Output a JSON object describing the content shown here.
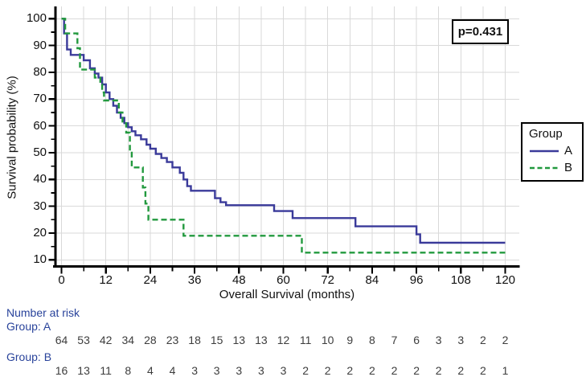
{
  "figure": {
    "p_value_label": "p=0.431",
    "legend": {
      "title": "Group",
      "items": [
        {
          "label": "A",
          "color": "#3a3a9a",
          "line_style": "solid"
        },
        {
          "label": "B",
          "color": "#22993e",
          "line_style": "dashed"
        }
      ]
    }
  },
  "chart_data": {
    "type": "line",
    "subtype": "kaplan_meier_step",
    "title": "",
    "xlabel": "Overall Survival (months)",
    "ylabel": "Survival probability (%)",
    "xlim": [
      0,
      120
    ],
    "ylim": [
      10,
      100
    ],
    "grid": true,
    "legend_position": "right-outside",
    "annotation": "p=0.431",
    "x_ticks_major": [
      0,
      12,
      24,
      36,
      48,
      60,
      72,
      84,
      96,
      108,
      120
    ],
    "x_ticks_minor": [
      6,
      18,
      30,
      42,
      54,
      66,
      78,
      90,
      102,
      114
    ],
    "y_ticks_major": [
      10,
      20,
      30,
      40,
      50,
      60,
      70,
      80,
      90,
      100
    ],
    "y_ticks_minor": [
      15,
      25,
      35,
      45,
      55,
      65,
      75,
      85,
      95
    ],
    "series": [
      {
        "name": "A",
        "color": "#3a3a9a",
        "style": "solid",
        "points": [
          [
            0,
            100
          ],
          [
            0.7,
            94.5
          ],
          [
            1.5,
            88.5
          ],
          [
            2.5,
            86.5
          ],
          [
            6,
            84.5
          ],
          [
            7.7,
            81.5
          ],
          [
            9,
            79.5
          ],
          [
            10,
            78
          ],
          [
            11,
            75.5
          ],
          [
            12,
            72.5
          ],
          [
            13,
            70
          ],
          [
            14,
            67.5
          ],
          [
            15,
            65
          ],
          [
            16,
            63
          ],
          [
            17,
            61
          ],
          [
            18,
            59.5
          ],
          [
            19,
            58
          ],
          [
            20,
            56.5
          ],
          [
            21.5,
            55
          ],
          [
            23,
            53
          ],
          [
            24,
            51.5
          ],
          [
            25.5,
            49.5
          ],
          [
            27,
            48
          ],
          [
            28.5,
            46.5
          ],
          [
            30,
            44.5
          ],
          [
            32,
            42.5
          ],
          [
            33,
            40
          ],
          [
            34,
            37.5
          ],
          [
            35,
            35.8
          ],
          [
            41.5,
            33
          ],
          [
            43,
            31.5
          ],
          [
            44.5,
            30.4
          ],
          [
            57.5,
            28.2
          ],
          [
            62.5,
            25.6
          ],
          [
            79.5,
            22.5
          ],
          [
            96,
            19.5
          ],
          [
            97,
            16.4
          ],
          [
            120,
            16.4
          ]
        ]
      },
      {
        "name": "B",
        "color": "#22993e",
        "style": "dashed",
        "points": [
          [
            0,
            100
          ],
          [
            1,
            94.5
          ],
          [
            4.3,
            89
          ],
          [
            5,
            81
          ],
          [
            9,
            78
          ],
          [
            10.5,
            75.5
          ],
          [
            11,
            72.5
          ],
          [
            11.5,
            69.5
          ],
          [
            15.5,
            65
          ],
          [
            16.5,
            61
          ],
          [
            17.5,
            57.5
          ],
          [
            18.5,
            50
          ],
          [
            19,
            44.5
          ],
          [
            22,
            37
          ],
          [
            22.7,
            31
          ],
          [
            23.5,
            25
          ],
          [
            33,
            19
          ],
          [
            65,
            12.7
          ],
          [
            120,
            12.7
          ]
        ]
      }
    ]
  },
  "risk_table": {
    "header": "Number at risk",
    "times": [
      0,
      6,
      12,
      18,
      24,
      30,
      36,
      42,
      48,
      54,
      60,
      66,
      72,
      78,
      84,
      90,
      96,
      102,
      108,
      114,
      120
    ],
    "groups": [
      {
        "label": "Group: A",
        "counts": [
          64,
          53,
          42,
          34,
          28,
          23,
          18,
          15,
          13,
          13,
          12,
          11,
          10,
          9,
          8,
          7,
          6,
          3,
          3,
          2,
          2
        ]
      },
      {
        "label": "Group: B",
        "counts": [
          16,
          13,
          11,
          8,
          4,
          4,
          3,
          3,
          3,
          3,
          3,
          2,
          2,
          2,
          2,
          2,
          2,
          2,
          2,
          2,
          1
        ]
      }
    ]
  }
}
